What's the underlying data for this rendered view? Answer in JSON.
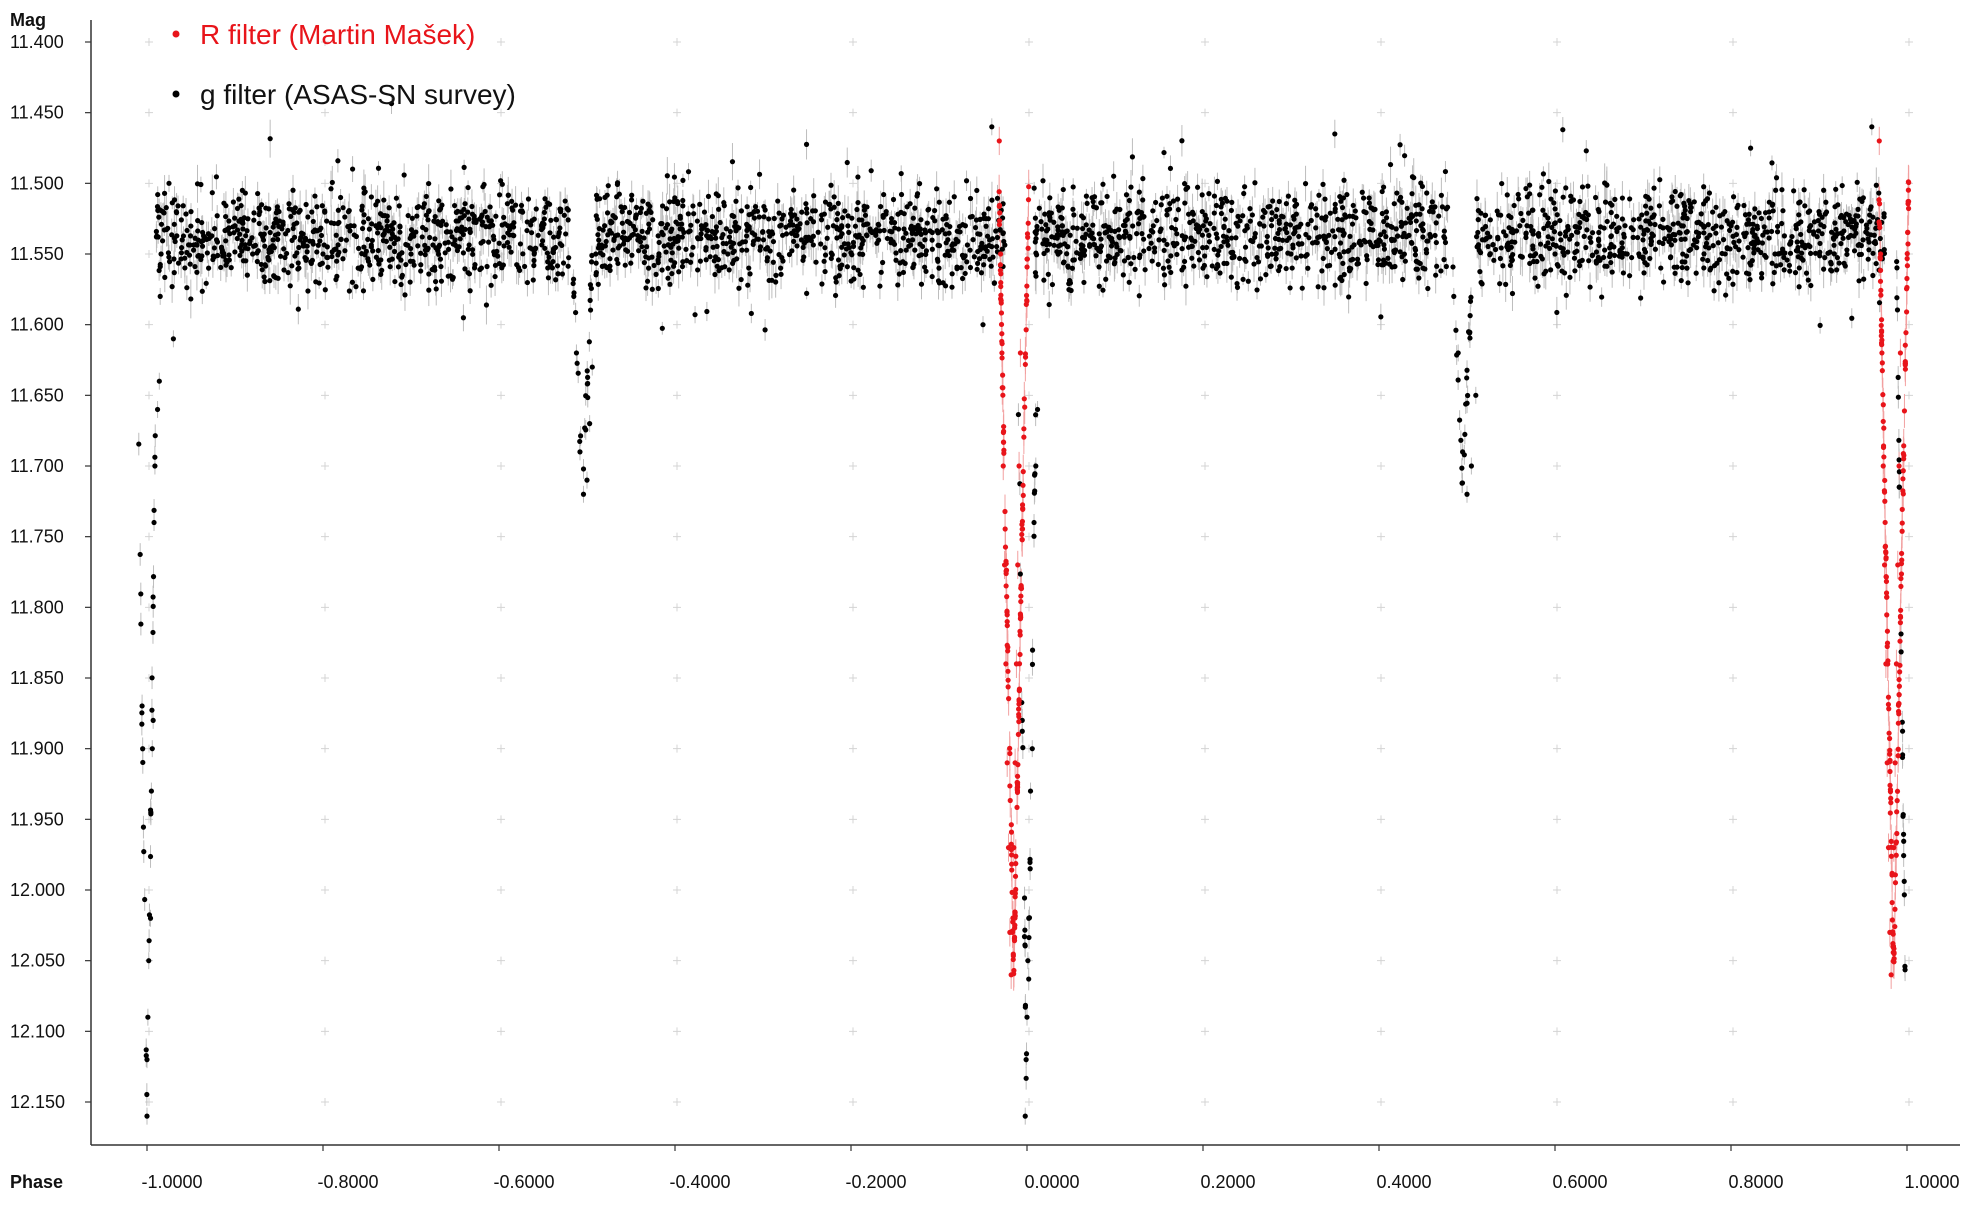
{
  "chart_data": {
    "type": "scatter",
    "xlabel": "Phase",
    "ylabel": "Mag",
    "xlim": [
      -1.065,
      1.075
    ],
    "ylim": [
      11.4,
      12.18
    ],
    "y_inverted": true,
    "grid": "crosshair markers",
    "legend_position": "top-left",
    "x_ticks": [
      "-1.0000",
      "-0.8000",
      "-0.6000",
      "-0.4000",
      "-0.2000",
      "0.0000",
      "0.2000",
      "0.4000",
      "0.6000",
      "0.8000",
      "1.0000"
    ],
    "x_tick_values": [
      -1.0,
      -0.8,
      -0.6,
      -0.4,
      -0.2,
      0.0,
      0.2,
      0.4,
      0.6,
      0.8,
      1.0
    ],
    "y_ticks": [
      "11.400",
      "11.450",
      "11.500",
      "11.550",
      "11.600",
      "11.650",
      "11.700",
      "11.750",
      "11.800",
      "11.850",
      "11.900",
      "11.950",
      "12.000",
      "12.050",
      "12.100",
      "12.150"
    ],
    "y_tick_values": [
      11.4,
      11.45,
      11.5,
      11.55,
      11.6,
      11.65,
      11.7,
      11.75,
      11.8,
      11.85,
      11.9,
      11.95,
      12.0,
      12.05,
      12.1,
      12.15
    ],
    "series": [
      {
        "name": "R filter (Martin Mašek)",
        "color": "#e8141a",
        "profile": "primary eclipse",
        "x": [
          -0.0315,
          -0.03,
          -0.0285,
          -0.027,
          -0.0255,
          -0.024,
          -0.0225,
          -0.021,
          -0.0195,
          -0.018,
          -0.0165,
          -0.015,
          -0.0135,
          -0.012,
          -0.0105,
          -0.009,
          -0.0075,
          0.9685,
          0.97,
          0.9715,
          0.973,
          0.9745,
          0.976,
          0.9775,
          0.979,
          0.9805,
          0.982,
          0.9835,
          0.985,
          0.9865,
          0.988,
          0.9895,
          0.991,
          0.9925
        ],
        "y": [
          11.47,
          11.55,
          11.62,
          11.7,
          11.77,
          11.84,
          11.91,
          11.97,
          12.03,
          12.06,
          12.03,
          11.97,
          11.91,
          11.84,
          11.77,
          11.7,
          11.62,
          11.47,
          11.55,
          11.62,
          11.7,
          11.77,
          11.84,
          11.91,
          11.97,
          12.03,
          12.06,
          12.03,
          11.97,
          11.91,
          11.84,
          11.77,
          11.7,
          11.62
        ]
      },
      {
        "name": "g filter (ASAS-SN survey)",
        "color": "#000000",
        "profile": "out-of-eclipse 11.50–11.58 with scatter; primary eclipse ~12.16 at phase 0; secondary eclipse ~11.71 at phase 0.5",
        "x": [
          -1.0,
          -1.0,
          -0.999,
          -0.998,
          -0.996,
          -0.995,
          -0.994,
          -0.993,
          -0.992,
          -0.991,
          -0.988,
          -0.986,
          -0.985,
          -0.984,
          -0.982,
          -0.975,
          -0.97,
          -0.96,
          -0.95,
          -0.93,
          -0.9,
          -0.88,
          -0.85,
          -0.82,
          -0.8,
          -0.78,
          -0.76,
          -0.74,
          -0.7,
          -0.68,
          -0.65,
          -0.62,
          -0.59,
          -0.56,
          -0.53,
          -0.515,
          -0.512,
          -0.508,
          -0.504,
          -0.5,
          -0.497,
          -0.494,
          -0.49,
          -0.48,
          -0.46,
          -0.43,
          -0.4,
          -0.37,
          -0.34,
          -0.31,
          -0.28,
          -0.25,
          -0.22,
          -0.19,
          -0.16,
          -0.13,
          -0.1,
          -0.07,
          -0.05,
          -0.04,
          -0.002,
          -0.001,
          0.0,
          0.001,
          0.002,
          0.004,
          0.006,
          0.008,
          0.01,
          0.012,
          0.02,
          0.04,
          0.06,
          0.1,
          0.15,
          0.2,
          0.25,
          0.3,
          0.35,
          0.4,
          0.45,
          0.485,
          0.49,
          0.495,
          0.5,
          0.505,
          0.51,
          0.52,
          0.56,
          0.6,
          0.65,
          0.7,
          0.75,
          0.8,
          0.85,
          0.9,
          0.95,
          0.96
        ],
        "y": [
          12.16,
          12.12,
          12.09,
          12.05,
          12.02,
          11.93,
          11.9,
          11.88,
          11.74,
          11.7,
          11.66,
          11.64,
          11.58,
          11.55,
          11.52,
          11.5,
          11.61,
          11.54,
          11.52,
          11.56,
          11.53,
          11.55,
          11.52,
          11.54,
          11.55,
          11.51,
          11.56,
          11.53,
          11.55,
          11.52,
          11.54,
          11.56,
          11.53,
          11.55,
          11.52,
          11.58,
          11.62,
          11.69,
          11.72,
          11.71,
          11.67,
          11.63,
          11.55,
          11.53,
          11.52,
          11.56,
          11.54,
          11.53,
          11.55,
          11.52,
          11.56,
          11.54,
          11.53,
          11.55,
          11.52,
          11.54,
          11.56,
          11.53,
          11.6,
          11.46,
          12.16,
          12.12,
          12.09,
          12.05,
          12.02,
          11.93,
          11.9,
          11.74,
          11.7,
          11.66,
          11.54,
          11.53,
          11.55,
          11.52,
          11.54,
          11.56,
          11.53,
          11.55,
          11.52,
          11.54,
          11.56,
          11.58,
          11.62,
          11.69,
          11.72,
          11.7,
          11.65,
          11.54,
          11.53,
          11.55,
          11.52,
          11.54,
          11.56,
          11.53,
          11.55,
          11.52,
          11.54,
          11.46
        ]
      }
    ]
  }
}
